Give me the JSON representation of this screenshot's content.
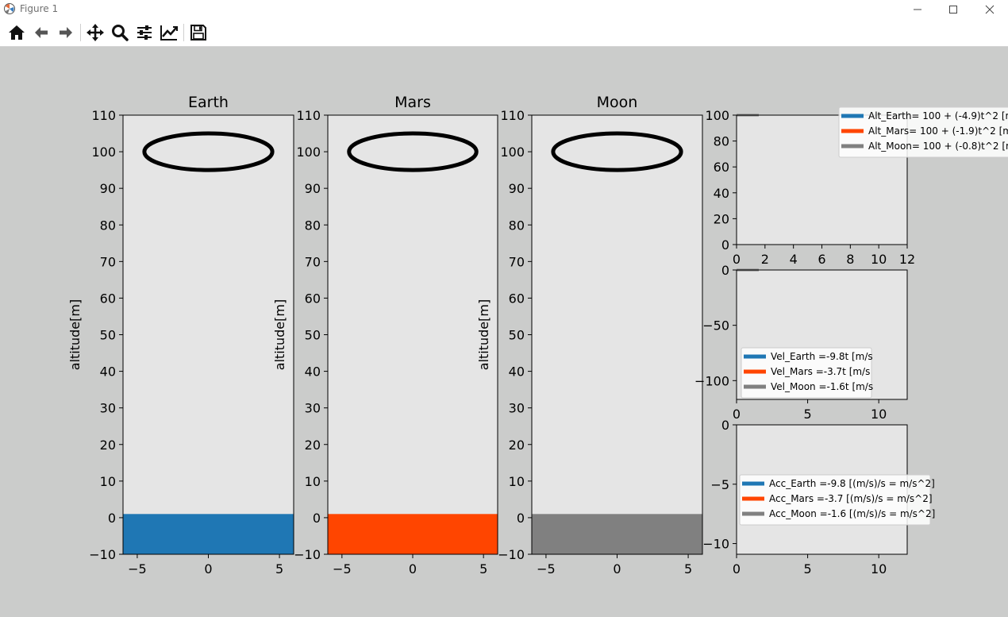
{
  "window": {
    "title": "Figure 1",
    "controls": [
      "minimize",
      "maximize",
      "close"
    ]
  },
  "toolbar": {
    "buttons": [
      {
        "name": "home",
        "icon": "home-icon"
      },
      {
        "name": "back",
        "icon": "arrow-left-icon"
      },
      {
        "name": "forward",
        "icon": "arrow-right-icon"
      },
      {
        "name": "pan",
        "icon": "move-icon"
      },
      {
        "name": "zoom",
        "icon": "magnifier-icon"
      },
      {
        "name": "configure-subplots",
        "icon": "sliders-icon"
      },
      {
        "name": "edit-axis",
        "icon": "line-chart-icon"
      },
      {
        "name": "save",
        "icon": "floppy-disk-icon"
      }
    ]
  },
  "colors": {
    "earth": "#1f77b4",
    "mars": "#ff4500",
    "moon": "#808080",
    "axes_bg": "#e5e5e5",
    "figure_bg": "#cbcccb"
  },
  "chart_data": [
    {
      "type": "bar",
      "title": "Earth",
      "ylabel": "altitude[m]",
      "xlim": [
        -6,
        6
      ],
      "ylim": [
        -10,
        110
      ],
      "xticks": [
        -5,
        0,
        5
      ],
      "yticks": [
        -10,
        0,
        10,
        20,
        30,
        40,
        50,
        60,
        70,
        80,
        90,
        100,
        110
      ],
      "ground": {
        "from": -10,
        "to": 1,
        "color": "#1f77b4"
      },
      "ellipse": {
        "cx": 0,
        "cy": 100,
        "rx": 5,
        "ry": 5
      }
    },
    {
      "type": "bar",
      "title": "Mars",
      "ylabel": "altitude[m]",
      "xlim": [
        -6,
        6
      ],
      "ylim": [
        -10,
        110
      ],
      "xticks": [
        -5,
        0,
        5
      ],
      "yticks": [
        -10,
        0,
        10,
        20,
        30,
        40,
        50,
        60,
        70,
        80,
        90,
        100,
        110
      ],
      "ground": {
        "from": -10,
        "to": 1,
        "color": "#ff4500"
      },
      "ellipse": {
        "cx": 0,
        "cy": 100,
        "rx": 5,
        "ry": 5
      }
    },
    {
      "type": "bar",
      "title": "Moon",
      "ylabel": "altitude[m]",
      "xlim": [
        -6,
        6
      ],
      "ylim": [
        -10,
        110
      ],
      "xticks": [
        -5,
        0,
        5
      ],
      "yticks": [
        -10,
        0,
        10,
        20,
        30,
        40,
        50,
        60,
        70,
        80,
        90,
        100,
        110
      ],
      "ground": {
        "from": -10,
        "to": 1,
        "color": "#808080"
      },
      "ellipse": {
        "cx": 0,
        "cy": 100,
        "rx": 5,
        "ry": 5
      }
    },
    {
      "type": "line",
      "xlim": [
        0,
        12
      ],
      "ylim": [
        0,
        100
      ],
      "xticks": [
        0,
        2,
        4,
        6,
        8,
        10,
        12
      ],
      "yticks": [
        0,
        20,
        40,
        60,
        80,
        100
      ],
      "legend_placement": "top-right, outside",
      "series": [
        {
          "name": "Alt_Earth= 100 + (-4.9)t^2 [m",
          "color": "#1f77b4",
          "x": [
            0
          ],
          "y": [
            100
          ]
        },
        {
          "name": "Alt_Mars= 100 + (-1.9)t^2 [m",
          "color": "#ff4500",
          "x": [
            0
          ],
          "y": [
            100
          ]
        },
        {
          "name": "Alt_Moon= 100 + (-0.8)t^2 [m",
          "color": "#808080",
          "x": [
            0
          ],
          "y": [
            100
          ]
        }
      ]
    },
    {
      "type": "line",
      "xlim": [
        0,
        12
      ],
      "ylim": [
        -117,
        0
      ],
      "xticks": [
        0,
        5,
        10
      ],
      "yticks": [
        0,
        -50,
        -100
      ],
      "legend_placement": "lower-left",
      "series": [
        {
          "name": "Vel_Earth =-9.8t [m/s",
          "color": "#1f77b4",
          "x": [
            0
          ],
          "y": [
            0
          ]
        },
        {
          "name": "Vel_Mars =-3.7t [m/s",
          "color": "#ff4500",
          "x": [
            0
          ],
          "y": [
            0
          ]
        },
        {
          "name": "Vel_Moon =-1.6t [m/s",
          "color": "#808080",
          "x": [
            0
          ],
          "y": [
            0
          ]
        }
      ]
    },
    {
      "type": "line",
      "xlim": [
        0,
        12
      ],
      "ylim": [
        -10.9,
        0
      ],
      "xticks": [
        0,
        5,
        10
      ],
      "yticks": [
        0,
        -5,
        -10
      ],
      "legend_placement": "center-left",
      "series": [
        {
          "name": "Acc_Earth =-9.8 [(m/s)/s = m/s^2]",
          "color": "#1f77b4",
          "x": [],
          "y": []
        },
        {
          "name": "Acc_Mars =-3.7 [(m/s)/s = m/s^2]",
          "color": "#ff4500",
          "x": [],
          "y": []
        },
        {
          "name": "Acc_Moon =-1.6 [(m/s)/s = m/s^2]",
          "color": "#808080",
          "x": [],
          "y": []
        }
      ]
    }
  ]
}
